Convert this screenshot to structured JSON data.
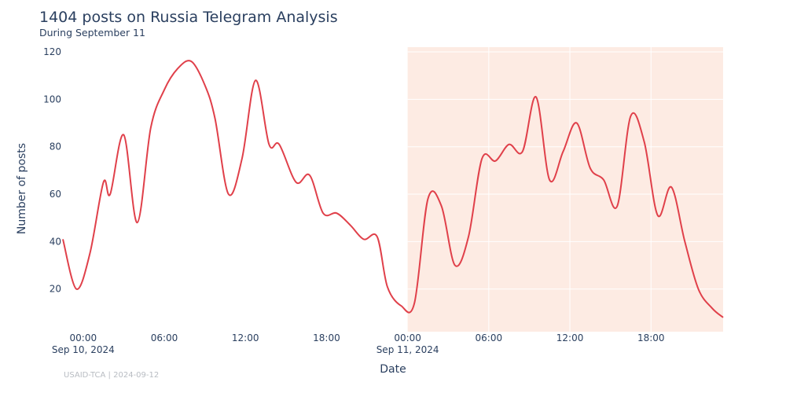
{
  "header": {
    "title": "1404 posts on Russia Telegram Analysis",
    "subtitle": "During September 11"
  },
  "footer": {
    "text": "USAID-TCA | 2024-09-12"
  },
  "colors": {
    "line": "#e0404a",
    "highlight": "#fdebe3",
    "grid_on_highlight": "#ffffff"
  },
  "chart_data": {
    "type": "line",
    "title": "1404 posts on Russia Telegram Analysis",
    "subtitle": "During September 11",
    "xlabel": "Date",
    "ylabel": "Number of posts",
    "x_range": [
      "2024-09-09 22:30",
      "2024-09-11 23:20"
    ],
    "ylim": [
      2,
      122
    ],
    "y_ticks": [
      20,
      40,
      60,
      80,
      100,
      120
    ],
    "x_ticks": [
      {
        "at": "2024-09-10 00:00",
        "label": "00:00",
        "sublabel": "Sep 10, 2024"
      },
      {
        "at": "2024-09-10 06:00",
        "label": "06:00",
        "sublabel": ""
      },
      {
        "at": "2024-09-10 12:00",
        "label": "12:00",
        "sublabel": ""
      },
      {
        "at": "2024-09-10 18:00",
        "label": "18:00",
        "sublabel": ""
      },
      {
        "at": "2024-09-11 00:00",
        "label": "00:00",
        "sublabel": "Sep 11, 2024"
      },
      {
        "at": "2024-09-11 06:00",
        "label": "06:00",
        "sublabel": ""
      },
      {
        "at": "2024-09-11 12:00",
        "label": "12:00",
        "sublabel": ""
      },
      {
        "at": "2024-09-11 18:00",
        "label": "18:00",
        "sublabel": ""
      }
    ],
    "highlight_range": [
      "2024-09-11 00:00",
      "2024-09-11 23:20"
    ],
    "grid": true,
    "legend": "none",
    "series": [
      {
        "x": [
          "2024-09-09 22:30",
          "2024-09-09 23:30",
          "2024-09-10 00:30",
          "2024-09-10 01:30",
          "2024-09-10 02:00",
          "2024-09-10 03:00",
          "2024-09-10 04:00",
          "2024-09-10 05:00",
          "2024-09-10 06:00",
          "2024-09-10 07:00",
          "2024-09-10 08:00",
          "2024-09-10 09:00",
          "2024-09-10 09:45",
          "2024-09-10 10:45",
          "2024-09-10 11:45",
          "2024-09-10 12:45",
          "2024-09-10 13:45",
          "2024-09-10 14:30",
          "2024-09-10 15:45",
          "2024-09-10 16:45",
          "2024-09-10 17:45",
          "2024-09-10 18:45",
          "2024-09-10 19:45",
          "2024-09-10 20:45",
          "2024-09-10 21:45",
          "2024-09-10 22:30",
          "2024-09-10 23:30",
          "2024-09-11 00:30",
          "2024-09-11 01:30",
          "2024-09-11 02:30",
          "2024-09-11 03:30",
          "2024-09-11 04:30",
          "2024-09-11 05:30",
          "2024-09-11 06:30",
          "2024-09-11 07:30",
          "2024-09-11 08:30",
          "2024-09-11 09:30",
          "2024-09-11 10:30",
          "2024-09-11 11:30",
          "2024-09-11 12:30",
          "2024-09-11 13:30",
          "2024-09-11 14:30",
          "2024-09-11 15:30",
          "2024-09-11 16:30",
          "2024-09-11 17:30",
          "2024-09-11 18:30",
          "2024-09-11 19:30",
          "2024-09-11 20:30",
          "2024-09-11 21:30",
          "2024-09-11 22:30",
          "2024-09-11 23:20"
        ],
        "values": [
          41,
          20,
          35,
          65,
          60,
          85,
          48,
          88,
          104,
          113,
          116,
          106,
          92,
          60,
          75,
          108,
          81,
          81,
          65,
          68,
          52,
          52,
          47,
          41,
          42,
          21,
          13,
          14,
          58,
          55,
          30,
          42,
          75,
          74,
          81,
          78,
          101,
          66,
          78,
          90,
          71,
          66,
          55,
          93,
          82,
          51,
          63,
          40,
          20,
          12,
          8
        ]
      }
    ]
  }
}
